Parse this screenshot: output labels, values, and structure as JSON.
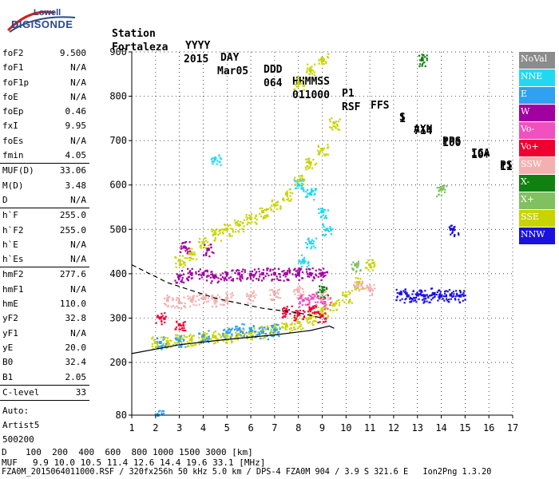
{
  "logo": {
    "line1": "Lowell",
    "line2": "DIGISONDE"
  },
  "header": {
    "labels": [
      "Station",
      "YYYY",
      "DAY",
      "DDD",
      "HHMMSS",
      "P1",
      "FFS",
      "S",
      "AXN",
      "PPS",
      "IGA",
      "PS"
    ],
    "values": [
      "Fortaleza",
      "2015",
      "Mar05",
      "064",
      "011000",
      "RSF",
      "",
      "1",
      "714",
      "100",
      "10+",
      "11"
    ]
  },
  "params": {
    "group1": [
      {
        "key": "foF2",
        "value": "9.500"
      },
      {
        "key": "foF1",
        "value": "N/A"
      },
      {
        "key": "foF1p",
        "value": "N/A"
      },
      {
        "key": "foE",
        "value": "N/A"
      },
      {
        "key": "foEp",
        "value": "0.46"
      },
      {
        "key": "fxI",
        "value": "9.95"
      },
      {
        "key": "foEs",
        "value": "N/A"
      },
      {
        "key": "fmin",
        "value": "4.05"
      }
    ],
    "group2": [
      {
        "key": "MUF(D)",
        "value": "33.06"
      },
      {
        "key": "M(D)",
        "value": "3.48"
      },
      {
        "key": "D",
        "value": "N/A"
      }
    ],
    "group3": [
      {
        "key": "h`F",
        "value": "255.0"
      },
      {
        "key": "h`F2",
        "value": "255.0"
      },
      {
        "key": "h`E",
        "value": "N/A"
      },
      {
        "key": "h`Es",
        "value": "N/A"
      }
    ],
    "group4": [
      {
        "key": "hmF2",
        "value": "277.6"
      },
      {
        "key": "hmF1",
        "value": "N/A"
      },
      {
        "key": "hmE",
        "value": "110.0"
      },
      {
        "key": "yF2",
        "value": "32.8"
      },
      {
        "key": "yF1",
        "value": "N/A"
      },
      {
        "key": "yE",
        "value": "20.0"
      },
      {
        "key": "B0",
        "value": "32.4"
      },
      {
        "key": "B1",
        "value": "2.05"
      }
    ],
    "group5": [
      {
        "key": "C-level",
        "value": "33"
      }
    ],
    "footer_lines": [
      "Auto:",
      "Artist5",
      "500200"
    ]
  },
  "legend": [
    {
      "label": "NoVal",
      "color": "#8c8c8c"
    },
    {
      "label": "NNE",
      "color": "#22d8f0"
    },
    {
      "label": "E",
      "color": "#30a0f0"
    },
    {
      "label": "W",
      "color": "#a000a0"
    },
    {
      "label": "Vo-",
      "color": "#f050c0"
    },
    {
      "label": "Vo+",
      "color": "#f00030"
    },
    {
      "label": "SSW",
      "color": "#f4b0b0"
    },
    {
      "label": "X-",
      "color": "#108010"
    },
    {
      "label": "X+",
      "color": "#80c060"
    },
    {
      "label": "SSE",
      "color": "#c8d400"
    },
    {
      "label": "NNW",
      "color": "#1a10e0"
    }
  ],
  "footer": {
    "d_label": "D",
    "d_values": "100  200  400  600  800 1000 1500 3000 [km]",
    "muf_label": "MUF",
    "muf_values": "9.9 10.0 10.5 11.4 12.6 14.4 19.6 33.1 [MHz]",
    "file_line": "FZA0M_2015064011000.RSF / 320fx256h 50 kHz 5.0 km / DPS-4 FZA0M 904 / 3.9 S 321.6 E   Ion2Png 1.3.20"
  },
  "chart_data": {
    "type": "scatter",
    "title": "",
    "xlabel": "",
    "ylabel": "",
    "xlim": [
      1,
      17
    ],
    "ylim": [
      80,
      900
    ],
    "xticks": [
      1,
      2,
      3,
      4,
      5,
      6,
      7,
      8,
      9,
      10,
      11,
      12,
      13,
      14,
      15,
      16,
      17
    ],
    "yticks": [
      80,
      200,
      300,
      400,
      500,
      600,
      700,
      800,
      900
    ],
    "grid": true,
    "series": [
      {
        "name": "SSE",
        "color": "#c8d400",
        "points": [
          [
            2.0,
            245
          ],
          [
            2.5,
            247
          ],
          [
            3.0,
            250
          ],
          [
            3.5,
            252
          ],
          [
            4.0,
            255
          ],
          [
            4.5,
            258
          ],
          [
            5.0,
            260
          ],
          [
            5.5,
            263
          ],
          [
            6.0,
            266
          ],
          [
            6.5,
            270
          ],
          [
            7.0,
            276
          ],
          [
            7.5,
            282
          ],
          [
            8.0,
            290
          ],
          [
            8.5,
            300
          ],
          [
            9.0,
            318
          ],
          [
            9.5,
            330
          ],
          [
            10.0,
            350
          ],
          [
            10.5,
            380
          ],
          [
            11.0,
            420
          ],
          [
            3.0,
            430
          ],
          [
            3.5,
            445
          ],
          [
            4.0,
            470
          ],
          [
            4.5,
            490
          ],
          [
            5.0,
            500
          ],
          [
            5.5,
            510
          ],
          [
            6.0,
            525
          ],
          [
            6.5,
            540
          ],
          [
            7.0,
            555
          ],
          [
            7.5,
            580
          ],
          [
            8.0,
            610
          ],
          [
            8.5,
            650
          ],
          [
            9.0,
            680
          ],
          [
            9.5,
            740
          ],
          [
            8.0,
            830
          ],
          [
            8.5,
            860
          ],
          [
            9.0,
            885
          ]
        ]
      },
      {
        "name": "E",
        "color": "#30a0f0",
        "points": [
          [
            2.2,
            245
          ],
          [
            3.0,
            250
          ],
          [
            4.0,
            260
          ],
          [
            5.0,
            268
          ],
          [
            5.5,
            275
          ],
          [
            6.0,
            272
          ],
          [
            6.5,
            268
          ],
          [
            7.0,
            273
          ],
          [
            2.1,
            80
          ]
        ]
      },
      {
        "name": "W",
        "color": "#a000a0",
        "points": [
          [
            3.0,
            395
          ],
          [
            3.5,
            400
          ],
          [
            4.0,
            400
          ],
          [
            4.5,
            395
          ],
          [
            5.0,
            400
          ],
          [
            5.5,
            400
          ],
          [
            6.0,
            398
          ],
          [
            6.5,
            400
          ],
          [
            7.0,
            400
          ],
          [
            7.5,
            400
          ],
          [
            8.0,
            400
          ],
          [
            8.5,
            400
          ],
          [
            9.0,
            400
          ],
          [
            3.2,
            460
          ],
          [
            4.2,
            455
          ]
        ]
      },
      {
        "name": "SSW",
        "color": "#f4b0b0",
        "points": [
          [
            2.5,
            340
          ],
          [
            3.0,
            335
          ],
          [
            3.5,
            340
          ],
          [
            4.0,
            345
          ],
          [
            4.5,
            340
          ],
          [
            5.0,
            345
          ],
          [
            6.0,
            350
          ],
          [
            7.0,
            355
          ],
          [
            8.0,
            360
          ],
          [
            9.0,
            355
          ],
          [
            10.5,
            375
          ],
          [
            11.0,
            365
          ]
        ]
      },
      {
        "name": "NNE",
        "color": "#22d8f0",
        "points": [
          [
            8.0,
            600
          ],
          [
            8.5,
            580
          ],
          [
            9.0,
            540
          ],
          [
            8.5,
            470
          ],
          [
            8.2,
            430
          ],
          [
            9.2,
            500
          ],
          [
            4.5,
            660
          ]
        ]
      },
      {
        "name": "Vo+",
        "color": "#f00030",
        "points": [
          [
            8.0,
            310
          ],
          [
            8.5,
            320
          ],
          [
            9.0,
            305
          ],
          [
            2.2,
            300
          ],
          [
            3.0,
            285
          ],
          [
            7.5,
            315
          ]
        ]
      },
      {
        "name": "Vo-",
        "color": "#f050c0",
        "points": [
          [
            8.2,
            340
          ],
          [
            8.6,
            345
          ],
          [
            9.1,
            335
          ]
        ]
      },
      {
        "name": "X-",
        "color": "#108010",
        "points": [
          [
            13.2,
            882
          ],
          [
            9.0,
            360
          ]
        ]
      },
      {
        "name": "X+",
        "color": "#80c060",
        "points": [
          [
            14.0,
            590
          ],
          [
            10.4,
            420
          ]
        ]
      },
      {
        "name": "NNW",
        "color": "#1a10e0",
        "points": [
          [
            12.3,
            355
          ],
          [
            12.6,
            350
          ],
          [
            13.0,
            352
          ],
          [
            13.3,
            350
          ],
          [
            13.7,
            355
          ],
          [
            14.0,
            350
          ],
          [
            14.4,
            352
          ],
          [
            14.8,
            350
          ],
          [
            14.5,
            500
          ]
        ]
      }
    ]
  }
}
